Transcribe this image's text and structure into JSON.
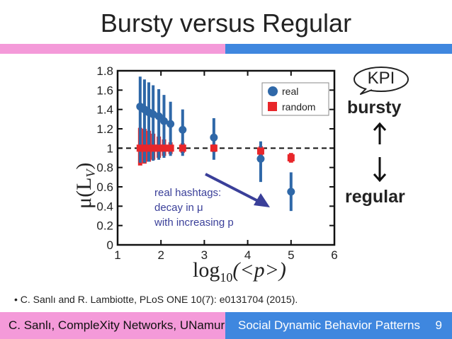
{
  "slide": {
    "title": "Bursty versus Regular",
    "citation": "C. Sanlı and R. Lambiotte, PLoS ONE 10(7): e0131704 (2015).",
    "kpi": "KPI",
    "bursty_label": "bursty",
    "regular_label": "regular",
    "footer_left": "C. Sanlı, CompleXity Networks, UNamur",
    "footer_right": "Social Dynamic Behavior Patterns",
    "page_number": "9",
    "colors": {
      "pink": "#f49ad9",
      "blue": "#3f87df"
    }
  },
  "chart_data": {
    "type": "scatter",
    "xlabel_main": "log",
    "xlabel_sub": "10",
    "xlabel_rest": "(<p>)",
    "ylabel": "μ(L",
    "ylabel_sub": "V",
    "ylabel_close": ")",
    "xlim": [
      1,
      6
    ],
    "ylim": [
      0,
      1.8
    ],
    "xticks": [
      "1",
      "2",
      "3",
      "4",
      "5",
      "6"
    ],
    "yticks": [
      "0",
      "0.2",
      "0.4",
      "0.6",
      "0.8",
      "1",
      "1.2",
      "1.4",
      "1.6",
      "1.8"
    ],
    "ytick_values": [
      0,
      0.2,
      0.4,
      0.6,
      0.8,
      1,
      1.2,
      1.4,
      1.6,
      1.8
    ],
    "reference_line": 1,
    "legend": {
      "position": "top-right",
      "entries": [
        "real",
        "random"
      ]
    },
    "annotation": [
      "real hashtags:",
      "decay in μ",
      "with increasing p"
    ],
    "series": [
      {
        "name": "real",
        "color": "#2f68a8",
        "marker": "circle",
        "points": [
          {
            "x": 1.52,
            "y": 1.43,
            "low": 0.85,
            "high": 1.74
          },
          {
            "x": 1.62,
            "y": 1.4,
            "low": 0.85,
            "high": 1.71
          },
          {
            "x": 1.72,
            "y": 1.37,
            "low": 0.86,
            "high": 1.68
          },
          {
            "x": 1.82,
            "y": 1.35,
            "low": 0.87,
            "high": 1.65
          },
          {
            "x": 1.95,
            "y": 1.33,
            "low": 0.88,
            "high": 1.61
          },
          {
            "x": 2.07,
            "y": 1.28,
            "low": 0.9,
            "high": 1.55
          },
          {
            "x": 2.22,
            "y": 1.25,
            "low": 0.92,
            "high": 1.48
          },
          {
            "x": 2.5,
            "y": 1.19,
            "low": 0.92,
            "high": 1.4
          },
          {
            "x": 3.22,
            "y": 1.11,
            "low": 0.88,
            "high": 1.31
          },
          {
            "x": 4.3,
            "y": 0.89,
            "low": 0.65,
            "high": 1.07
          },
          {
            "x": 5.0,
            "y": 0.55,
            "low": 0.35,
            "high": 0.75
          }
        ]
      },
      {
        "name": "random",
        "color": "#e8262a",
        "marker": "square",
        "points": [
          {
            "x": 1.52,
            "y": 1.0,
            "low": 0.82,
            "high": 1.21
          },
          {
            "x": 1.62,
            "y": 1.0,
            "low": 0.84,
            "high": 1.2
          },
          {
            "x": 1.72,
            "y": 1.0,
            "low": 0.86,
            "high": 1.18
          },
          {
            "x": 1.82,
            "y": 1.0,
            "low": 0.88,
            "high": 1.15
          },
          {
            "x": 1.95,
            "y": 1.0,
            "low": 0.9,
            "high": 1.12
          },
          {
            "x": 2.07,
            "y": 1.0,
            "low": 0.92,
            "high": 1.09
          },
          {
            "x": 2.22,
            "y": 1.0,
            "low": 0.94,
            "high": 1.06
          },
          {
            "x": 2.5,
            "y": 1.0,
            "low": 0.95,
            "high": 1.05
          },
          {
            "x": 3.22,
            "y": 1.0,
            "low": 0.96,
            "high": 1.04
          },
          {
            "x": 4.3,
            "y": 0.97,
            "low": 0.92,
            "high": 1.02
          },
          {
            "x": 5.0,
            "y": 0.9,
            "low": 0.85,
            "high": 0.95
          }
        ]
      }
    ]
  }
}
